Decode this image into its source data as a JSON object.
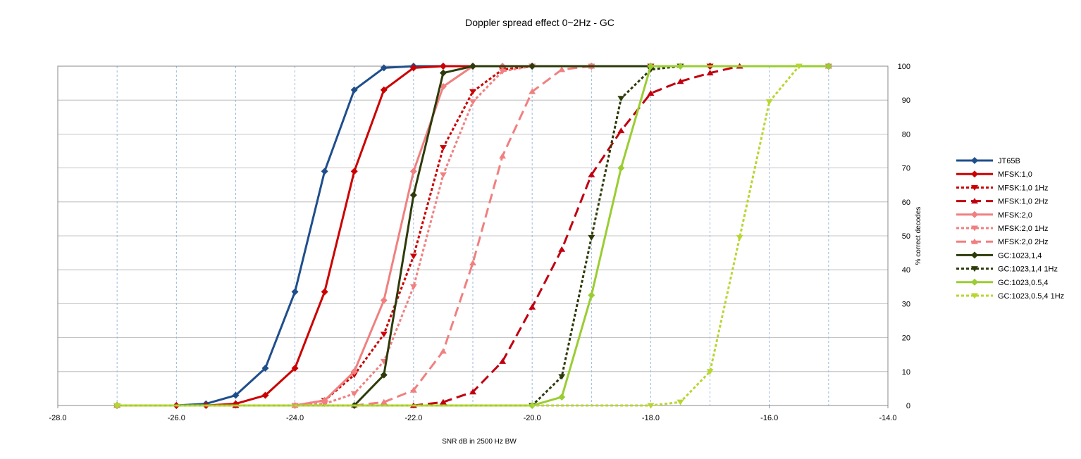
{
  "chart_data": {
    "type": "line",
    "title": "Doppler spread effect 0~2Hz - GC",
    "xlabel": "SNR dB in 2500 Hz BW",
    "ylabel": "% correct decodes",
    "xlim": [
      -28,
      -14
    ],
    "ylim": [
      0,
      100
    ],
    "x_ticks": [
      "-28.0",
      "-26.0",
      "-24.0",
      "-22.0",
      "-20.0",
      "-18.0",
      "-16.0",
      "-14.0"
    ],
    "y_ticks": [
      "0",
      "10",
      "20",
      "30",
      "40",
      "50",
      "60",
      "70",
      "80",
      "90",
      "100"
    ],
    "grid": "horizontal solid gray, vertical dashed blue",
    "legend": "right",
    "series": [
      {
        "name": "JT65B",
        "color": "#1f4e8c",
        "dash": "solid",
        "marker": "diamond",
        "x": [
          -27,
          -26,
          -25.5,
          -25,
          -24.5,
          -24,
          -23.5,
          -23,
          -22.5,
          -22,
          -21.5,
          -21,
          -20,
          -19,
          -18,
          -17,
          -15
        ],
        "y": [
          0,
          0,
          0.5,
          3,
          11,
          33.5,
          69,
          93,
          99.5,
          100,
          100,
          100,
          100,
          100,
          100,
          100,
          100
        ]
      },
      {
        "name": "MFSK:1,0",
        "color": "#cc0000",
        "dash": "solid",
        "marker": "diamond",
        "x": [
          -27,
          -26,
          -25.5,
          -25,
          -24.5,
          -24,
          -23.5,
          -23,
          -22.5,
          -22,
          -21.5,
          -21,
          -20,
          -19,
          -18,
          -17,
          -15
        ],
        "y": [
          0,
          0,
          0,
          0.5,
          3,
          11,
          33.5,
          69,
          93,
          99.5,
          100,
          100,
          100,
          100,
          100,
          100,
          100
        ]
      },
      {
        "name": "MFSK:1,0 1Hz",
        "color": "#cc0000",
        "dash": "dotted",
        "marker": "tri-down",
        "x": [
          -27,
          -25,
          -24,
          -23.5,
          -23,
          -22.5,
          -22,
          -21.5,
          -21,
          -20.5,
          -20,
          -19,
          -18,
          -17,
          -15
        ],
        "y": [
          0,
          0,
          0,
          1.5,
          9,
          21,
          44,
          76,
          92.5,
          99,
          100,
          100,
          100,
          100,
          100
        ]
      },
      {
        "name": "MFSK:1,0 2Hz",
        "color": "#c00010",
        "dash": "dashed",
        "marker": "tri-up",
        "x": [
          -27,
          -25,
          -24,
          -23,
          -22,
          -21.5,
          -21,
          -20.5,
          -20,
          -19.5,
          -19,
          -18.5,
          -18,
          -17.5,
          -17,
          -16.5,
          -15
        ],
        "y": [
          0,
          0,
          0,
          0,
          0,
          1,
          4,
          13,
          29,
          46,
          68,
          81,
          92,
          95.5,
          98,
          100,
          100
        ]
      },
      {
        "name": "MFSK:2,0",
        "color": "#f08080",
        "dash": "solid",
        "marker": "diamond",
        "x": [
          -27,
          -24,
          -23.5,
          -23,
          -22.5,
          -22,
          -21.5,
          -21,
          -20.5,
          -20,
          -19,
          -15
        ],
        "y": [
          0,
          0,
          1.5,
          10,
          31,
          69,
          94,
          100,
          100,
          100,
          100,
          100
        ]
      },
      {
        "name": "MFSK:2,0 1Hz",
        "color": "#f08080",
        "dash": "dotted",
        "marker": "tri-down",
        "x": [
          -27,
          -24,
          -23.5,
          -23,
          -22.5,
          -22,
          -21.5,
          -21,
          -20.5,
          -20,
          -19,
          -15
        ],
        "y": [
          0,
          0,
          0.5,
          3.5,
          13,
          35,
          68,
          89.5,
          98.5,
          100,
          100,
          100
        ]
      },
      {
        "name": "MFSK:2,0 2Hz",
        "color": "#f08080",
        "dash": "dashed",
        "marker": "tri-up",
        "x": [
          -27,
          -24,
          -23,
          -22.5,
          -22,
          -21.5,
          -21,
          -20.5,
          -20,
          -19.5,
          -19,
          -18,
          -15
        ],
        "y": [
          0,
          0,
          0,
          1,
          4.5,
          16,
          42,
          73.5,
          92.5,
          99,
          100,
          100,
          100
        ]
      },
      {
        "name": "GC:1023,1,4",
        "color": "#2d3b0a",
        "dash": "solid",
        "marker": "diamond",
        "x": [
          -27,
          -23,
          -22.5,
          -22,
          -21.5,
          -21,
          -20,
          -15
        ],
        "y": [
          0,
          0,
          9,
          62,
          98,
          100,
          100,
          100
        ]
      },
      {
        "name": "GC:1023,1,4 1Hz",
        "color": "#2d3b0a",
        "dash": "dotted",
        "marker": "tri-down",
        "x": [
          -27,
          -20,
          -19.5,
          -19,
          -18.5,
          -18,
          -17.5
        ],
        "y": [
          0,
          0,
          8.5,
          49.5,
          90.5,
          99,
          100
        ]
      },
      {
        "name": "GC:1023,0.5,4",
        "color": "#9acd32",
        "dash": "solid",
        "marker": "diamond",
        "x": [
          -27,
          -20,
          -19.5,
          -19,
          -18.5,
          -18,
          -17.5,
          -15
        ],
        "y": [
          0,
          0,
          2.5,
          32.5,
          70,
          100,
          100,
          100
        ]
      },
      {
        "name": "GC:1023,0.5,4 1Hz",
        "color": "#b8d632",
        "dash": "dotted",
        "marker": "tri-down",
        "x": [
          -27,
          -18,
          -17.5,
          -17,
          -16.5,
          -16,
          -15.5
        ],
        "y": [
          0,
          0,
          1,
          10,
          49.5,
          89.5,
          100
        ]
      }
    ]
  }
}
